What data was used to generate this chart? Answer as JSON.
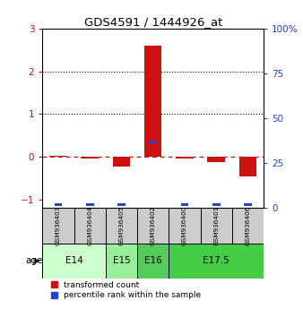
{
  "title": "GDS4591 / 1444926_at",
  "samples": [
    "GSM936403",
    "GSM936404",
    "GSM936405",
    "GSM936402",
    "GSM936400",
    "GSM936401",
    "GSM936406"
  ],
  "red_values": [
    0.02,
    -0.05,
    -0.22,
    2.6,
    -0.04,
    -0.12,
    -0.45
  ],
  "blue_values_right": [
    2,
    2,
    2,
    37,
    2,
    2,
    2
  ],
  "age_groups": [
    {
      "label": "E14",
      "span": [
        0,
        2
      ],
      "color": "#ccffcc"
    },
    {
      "label": "E15",
      "span": [
        2,
        3
      ],
      "color": "#99ee99"
    },
    {
      "label": "E16",
      "span": [
        3,
        4
      ],
      "color": "#55cc55"
    },
    {
      "label": "E17.5",
      "span": [
        4,
        7
      ],
      "color": "#44cc44"
    }
  ],
  "ylim_left": [
    -1.2,
    3.0
  ],
  "ylim_right": [
    0,
    100
  ],
  "yticks_left": [
    -1,
    0,
    1,
    2,
    3
  ],
  "yticks_right": [
    0,
    25,
    50,
    75,
    100
  ],
  "hline_y": 0.0,
  "dotted_lines": [
    1.0,
    2.0
  ],
  "bar_width": 0.55,
  "blue_bar_width": 0.25,
  "red_color": "#cc1111",
  "blue_color": "#2244cc",
  "gray_color": "#cccccc",
  "background_color": "#ffffff",
  "legend_red": "transformed count",
  "legend_blue": "percentile rank within the sample"
}
